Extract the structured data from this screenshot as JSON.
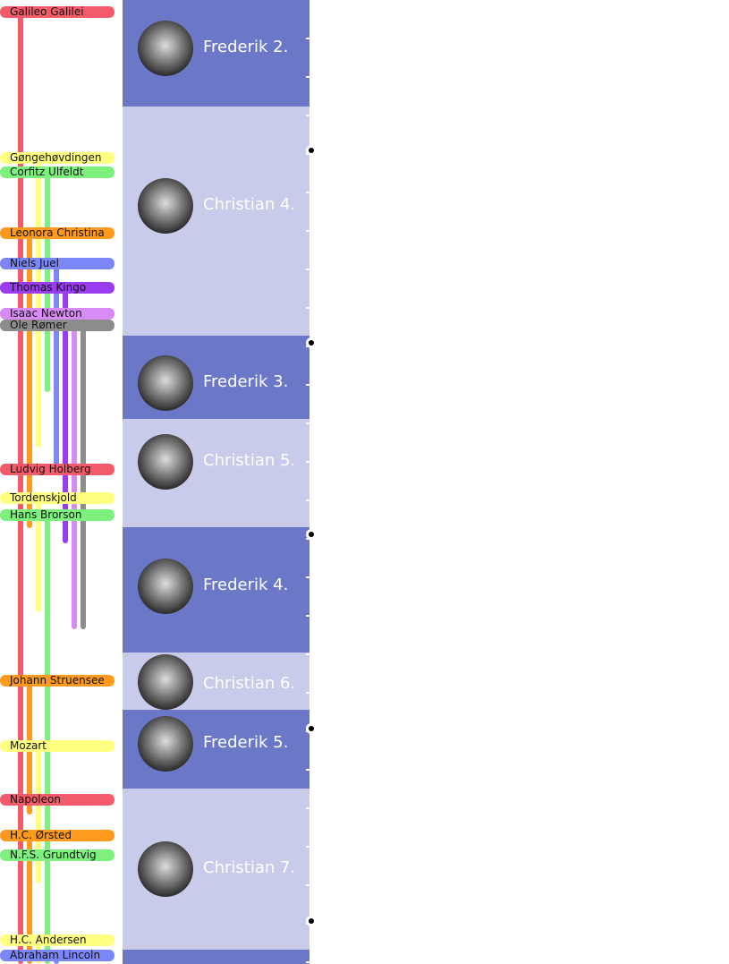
{
  "people": [
    {
      "name": "Galileo Galilei",
      "color": "#f45b6a"
    },
    {
      "name": "Gøngehøvdingen",
      "color": "#ffff80"
    },
    {
      "name": "Corfitz Ulfeldt",
      "color": "#7ef07e"
    },
    {
      "name": "Leonora Christina",
      "color": "#ff9a1f"
    },
    {
      "name": "Niels Juel",
      "color": "#7b86f7"
    },
    {
      "name": "Thomas Kingo",
      "color": "#9a3cf0"
    },
    {
      "name": "Isaac Newton",
      "color": "#d98bf5"
    },
    {
      "name": "Ole Rømer",
      "color": "#8c8c8c"
    },
    {
      "name": "Ludvig Holberg",
      "color": "#f45b6a"
    },
    {
      "name": "Tordenskjold",
      "color": "#ffff80"
    },
    {
      "name": "Hans Brorson",
      "color": "#7ef07e"
    },
    {
      "name": "Johann Struensee",
      "color": "#ff9a1f"
    },
    {
      "name": "Mozart",
      "color": "#ffff80"
    },
    {
      "name": "Napoleon",
      "color": "#f45b6a"
    },
    {
      "name": "H.C. Ørsted",
      "color": "#ff9a1f"
    },
    {
      "name": "N.F.S. Grundtvig",
      "color": "#7ef07e"
    },
    {
      "name": "H.C. Andersen",
      "color": "#ffff80"
    },
    {
      "name": "Abraham Lincoln",
      "color": "#7b86f7"
    }
  ],
  "reigns": [
    {
      "name": "Frederik 2."
    },
    {
      "name": "Christian 4."
    },
    {
      "name": "Frederik 3."
    },
    {
      "name": "Christian 5."
    },
    {
      "name": "Frederik 4."
    },
    {
      "name": "Christian 6."
    },
    {
      "name": "Frederik 5."
    },
    {
      "name": "Christian 7."
    }
  ]
}
